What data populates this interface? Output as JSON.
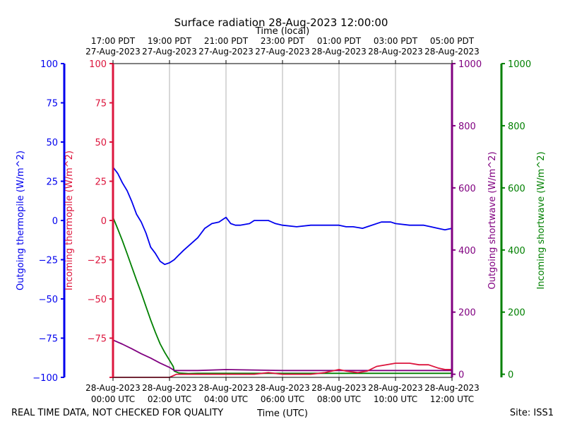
{
  "title": "Surface radiation 28-Aug-2023 12:00:00",
  "footer_left": "REAL TIME DATA, NOT CHECKED FOR QUALITY",
  "footer_right": "Site: ISS1",
  "colors": {
    "out_thermopile": "#0000ee",
    "in_thermopile": "#dc143c",
    "out_shortwave": "#800080",
    "in_shortwave": "#008000",
    "grid": "#b0b0b0"
  },
  "chart_data": {
    "type": "line",
    "title": "Surface radiation 28-Aug-2023 12:00:00",
    "xlabel": "Time (UTC)",
    "x2label": "Time (local)",
    "xlim": [
      "2023-08-28T00:00Z",
      "2023-08-28T12:00Z"
    ],
    "x_ticks_bottom": [
      {
        "t": "2023-08-28T00:00Z",
        "line1": "28-Aug-2023",
        "line2": "00:00 UTC"
      },
      {
        "t": "2023-08-28T02:00Z",
        "line1": "28-Aug-2023",
        "line2": "02:00 UTC"
      },
      {
        "t": "2023-08-28T04:00Z",
        "line1": "28-Aug-2023",
        "line2": "04:00 UTC"
      },
      {
        "t": "2023-08-28T06:00Z",
        "line1": "28-Aug-2023",
        "line2": "06:00 UTC"
      },
      {
        "t": "2023-08-28T08:00Z",
        "line1": "28-Aug-2023",
        "line2": "08:00 UTC"
      },
      {
        "t": "2023-08-28T10:00Z",
        "line1": "28-Aug-2023",
        "line2": "10:00 UTC"
      },
      {
        "t": "2023-08-28T12:00Z",
        "line1": "28-Aug-2023",
        "line2": "12:00 UTC"
      }
    ],
    "x_ticks_top": [
      {
        "t": "2023-08-28T00:00Z",
        "line1": "17:00 PDT",
        "line2": "27-Aug-2023"
      },
      {
        "t": "2023-08-28T02:00Z",
        "line1": "19:00 PDT",
        "line2": "27-Aug-2023"
      },
      {
        "t": "2023-08-28T04:00Z",
        "line1": "21:00 PDT",
        "line2": "27-Aug-2023"
      },
      {
        "t": "2023-08-28T06:00Z",
        "line1": "23:00 PDT",
        "line2": "27-Aug-2023"
      },
      {
        "t": "2023-08-28T08:00Z",
        "line1": "01:00 PDT",
        "line2": "28-Aug-2023"
      },
      {
        "t": "2023-08-28T10:00Z",
        "line1": "03:00 PDT",
        "line2": "28-Aug-2023"
      },
      {
        "t": "2023-08-28T12:00Z",
        "line1": "05:00 PDT",
        "line2": "28-Aug-2023"
      }
    ],
    "grid": "vertical",
    "axes": [
      {
        "id": "out_thermopile",
        "label": "Outgoing thermopile (W/m^2)",
        "side": "left-outer",
        "ylim": [
          -100,
          100
        ],
        "ticks": [
          {
            "v": -100,
            "label": "−100"
          },
          {
            "v": -75,
            "label": "−75"
          },
          {
            "v": -50,
            "label": "−50"
          },
          {
            "v": -25,
            "label": "−25"
          },
          {
            "v": 0,
            "label": "0"
          },
          {
            "v": 25,
            "label": "25"
          },
          {
            "v": 50,
            "label": "50"
          },
          {
            "v": 75,
            "label": "75"
          },
          {
            "v": 100,
            "label": "100"
          }
        ]
      },
      {
        "id": "in_thermopile",
        "label": "Incoming thermopile (W/m^2)",
        "side": "left",
        "ylim": [
          -100,
          100
        ],
        "ticks": [
          {
            "v": -100,
            "label": ""
          },
          {
            "v": -75,
            "label": "−75"
          },
          {
            "v": -50,
            "label": "−50"
          },
          {
            "v": -25,
            "label": "−25"
          },
          {
            "v": 0,
            "label": "0"
          },
          {
            "v": 25,
            "label": "25"
          },
          {
            "v": 50,
            "label": "50"
          },
          {
            "v": 75,
            "label": "75"
          },
          {
            "v": 100,
            "label": "100"
          }
        ]
      },
      {
        "id": "out_shortwave",
        "label": "Outgoing shortwave (W/m^2)",
        "side": "right",
        "ylim": [
          -10,
          1000
        ],
        "ticks": [
          {
            "v": 0,
            "label": "0"
          },
          {
            "v": 200,
            "label": "200"
          },
          {
            "v": 400,
            "label": "400"
          },
          {
            "v": 600,
            "label": "600"
          },
          {
            "v": 800,
            "label": "800"
          },
          {
            "v": 1000,
            "label": "1000"
          }
        ]
      },
      {
        "id": "in_shortwave",
        "label": "Incoming shortwave (W/m^2)",
        "side": "right-outer",
        "ylim": [
          -10,
          1000
        ],
        "ticks": [
          {
            "v": 0,
            "label": "0"
          },
          {
            "v": 200,
            "label": "200"
          },
          {
            "v": 400,
            "label": "400"
          },
          {
            "v": 600,
            "label": "600"
          },
          {
            "v": 800,
            "label": "800"
          },
          {
            "v": 1000,
            "label": "1000"
          }
        ]
      }
    ],
    "series": [
      {
        "axis": "out_thermopile",
        "color": "#0000ee",
        "x": [
          "2023-08-28T00:00Z",
          "2023-08-28T00:10Z",
          "2023-08-28T00:20Z",
          "2023-08-28T00:30Z",
          "2023-08-28T00:40Z",
          "2023-08-28T00:50Z",
          "2023-08-28T01:00Z",
          "2023-08-28T01:10Z",
          "2023-08-28T01:20Z",
          "2023-08-28T01:30Z",
          "2023-08-28T01:40Z",
          "2023-08-28T01:50Z",
          "2023-08-28T02:00Z",
          "2023-08-28T02:10Z",
          "2023-08-28T02:20Z",
          "2023-08-28T02:30Z",
          "2023-08-28T02:45Z",
          "2023-08-28T03:00Z",
          "2023-08-28T03:15Z",
          "2023-08-28T03:30Z",
          "2023-08-28T03:45Z",
          "2023-08-28T03:55Z",
          "2023-08-28T04:00Z",
          "2023-08-28T04:10Z",
          "2023-08-28T04:20Z",
          "2023-08-28T04:30Z",
          "2023-08-28T04:50Z",
          "2023-08-28T05:00Z",
          "2023-08-28T05:15Z",
          "2023-08-28T05:30Z",
          "2023-08-28T05:45Z",
          "2023-08-28T06:00Z",
          "2023-08-28T06:30Z",
          "2023-08-28T07:00Z",
          "2023-08-28T07:30Z",
          "2023-08-28T08:00Z",
          "2023-08-28T08:15Z",
          "2023-08-28T08:30Z",
          "2023-08-28T08:50Z",
          "2023-08-28T09:00Z",
          "2023-08-28T09:30Z",
          "2023-08-28T09:50Z",
          "2023-08-28T10:00Z",
          "2023-08-28T10:30Z",
          "2023-08-28T11:00Z",
          "2023-08-28T11:15Z",
          "2023-08-28T11:30Z",
          "2023-08-28T11:45Z",
          "2023-08-28T12:00Z"
        ],
        "y": [
          34,
          30,
          24,
          19,
          12,
          4,
          -1,
          -8,
          -17,
          -21,
          -26,
          -28,
          -27,
          -25,
          -22,
          -19,
          -15,
          -11,
          -5,
          -2,
          -1,
          1,
          2,
          -2,
          -3,
          -3,
          -2,
          0,
          0,
          0,
          -2,
          -3,
          -4,
          -3,
          -3,
          -3,
          -4,
          -4,
          -5,
          -4,
          -1,
          -1,
          -2,
          -3,
          -3,
          -4,
          -5,
          -6,
          -5
        ]
      },
      {
        "axis": "in_thermopile",
        "color": "#dc143c",
        "x": [
          "2023-08-28T00:00Z",
          "2023-08-28T01:00Z",
          "2023-08-28T02:00Z",
          "2023-08-28T02:15Z",
          "2023-08-28T03:00Z",
          "2023-08-28T04:00Z",
          "2023-08-28T05:00Z",
          "2023-08-28T05:30Z",
          "2023-08-28T06:00Z",
          "2023-08-28T07:00Z",
          "2023-08-28T07:30Z",
          "2023-08-28T08:00Z",
          "2023-08-28T08:15Z",
          "2023-08-28T08:40Z",
          "2023-08-28T09:00Z",
          "2023-08-28T09:20Z",
          "2023-08-28T09:40Z",
          "2023-08-28T10:00Z",
          "2023-08-28T10:30Z",
          "2023-08-28T10:50Z",
          "2023-08-28T11:10Z",
          "2023-08-28T11:30Z",
          "2023-08-28T11:45Z",
          "2023-08-28T12:00Z"
        ],
        "y": [
          -100,
          -100,
          -100,
          -98,
          -98,
          -98,
          -98,
          -97,
          -98,
          -98,
          -97,
          -95,
          -96,
          -97,
          -96,
          -93,
          -92,
          -91,
          -91,
          -92,
          -92,
          -94,
          -95,
          -95
        ]
      },
      {
        "axis": "out_shortwave",
        "color": "#800080",
        "x": [
          "2023-08-28T00:00Z",
          "2023-08-28T00:20Z",
          "2023-08-28T00:40Z",
          "2023-08-28T01:00Z",
          "2023-08-28T01:20Z",
          "2023-08-28T01:40Z",
          "2023-08-28T02:00Z",
          "2023-08-28T02:10Z",
          "2023-08-28T03:00Z",
          "2023-08-28T04:00Z",
          "2023-08-28T06:00Z",
          "2023-08-28T08:00Z",
          "2023-08-28T10:00Z",
          "2023-08-28T12:00Z"
        ],
        "y": [
          110,
          97,
          82,
          66,
          52,
          36,
          22,
          12,
          12,
          15,
          12,
          12,
          12,
          12
        ]
      },
      {
        "axis": "in_shortwave",
        "color": "#008000",
        "x": [
          "2023-08-28T00:00Z",
          "2023-08-28T00:10Z",
          "2023-08-28T00:20Z",
          "2023-08-28T00:30Z",
          "2023-08-28T00:40Z",
          "2023-08-28T00:50Z",
          "2023-08-28T01:00Z",
          "2023-08-28T01:10Z",
          "2023-08-28T01:20Z",
          "2023-08-28T01:30Z",
          "2023-08-28T01:40Z",
          "2023-08-28T01:50Z",
          "2023-08-28T02:00Z",
          "2023-08-28T02:08Z",
          "2023-08-28T02:10Z",
          "2023-08-28T02:20Z",
          "2023-08-28T02:40Z",
          "2023-08-28T03:00Z",
          "2023-08-28T04:00Z",
          "2023-08-28T06:00Z",
          "2023-08-28T08:00Z",
          "2023-08-28T10:00Z",
          "2023-08-28T12:00Z"
        ],
        "y": [
          505,
          468,
          430,
          388,
          345,
          303,
          262,
          218,
          175,
          135,
          98,
          70,
          45,
          25,
          10,
          4,
          2,
          3,
          3,
          3,
          3,
          3,
          3
        ]
      }
    ]
  }
}
